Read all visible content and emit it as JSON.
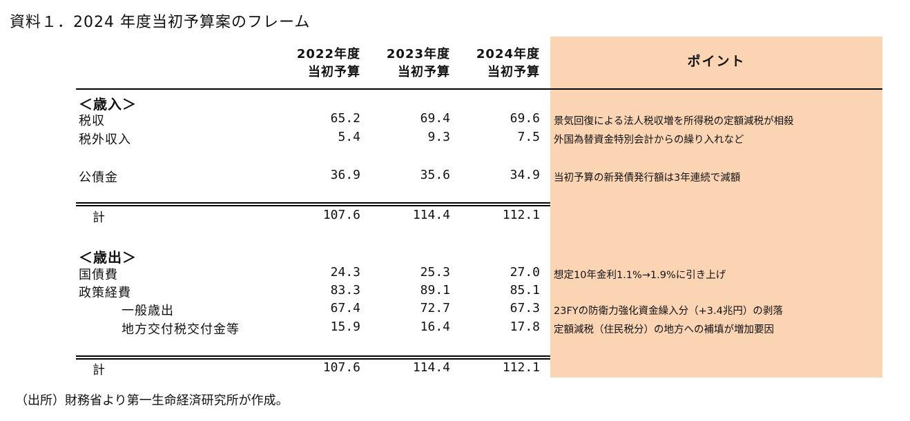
{
  "title": "資料１．2024 年度当初予算案のフレーム",
  "columns": [
    {
      "line1": "2022年度",
      "line2": "当初予算"
    },
    {
      "line1": "2023年度",
      "line2": "当初予算"
    },
    {
      "line1": "2024年度",
      "line2": "当初予算"
    }
  ],
  "points_header": "ポイント",
  "rows": [
    {
      "label": "＜歳入＞",
      "bold": true,
      "values": [
        "",
        "",
        ""
      ],
      "point": ""
    },
    {
      "label": "税収",
      "values": [
        "65.2",
        "69.4",
        "69.6"
      ],
      "point": "景気回復による法人税収増を所得税の定額減税が相殺"
    },
    {
      "label": "税外収入",
      "values": [
        "5.4",
        "9.3",
        "7.5"
      ],
      "point": "外国為替資金特別会計からの繰り入れなど"
    },
    {
      "label": "公債金",
      "values": [
        "36.9",
        "35.6",
        "34.9"
      ],
      "point": "当初予算の新発債発行額は3年連続で減額"
    },
    {
      "label": "計",
      "values": [
        "107.6",
        "114.4",
        "112.1"
      ],
      "point": ""
    },
    {
      "label": "＜歳出＞",
      "bold": true,
      "values": [
        "",
        "",
        ""
      ],
      "point": ""
    },
    {
      "label": "国債費",
      "values": [
        "24.3",
        "25.3",
        "27.0"
      ],
      "point": "想定10年金利1.1%→1.9%に引き上げ"
    },
    {
      "label": "政策経費",
      "values": [
        "83.3",
        "89.1",
        "85.1"
      ],
      "point": ""
    },
    {
      "label": "一般歳出",
      "values": [
        "67.4",
        "72.7",
        "67.3"
      ],
      "point": "23FYの防衛力強化資金繰入分（+3.4兆円）の剥落"
    },
    {
      "label": "地方交付税交付金等",
      "values": [
        "15.9",
        "16.4",
        "17.8"
      ],
      "point": "定額減税（住民税分）の地方への補填が増加要因"
    },
    {
      "label": "計",
      "values": [
        "107.6",
        "114.4",
        "112.1"
      ],
      "point": ""
    }
  ],
  "source": "（出所）財務省より第一生命経済研究所が作成。"
}
